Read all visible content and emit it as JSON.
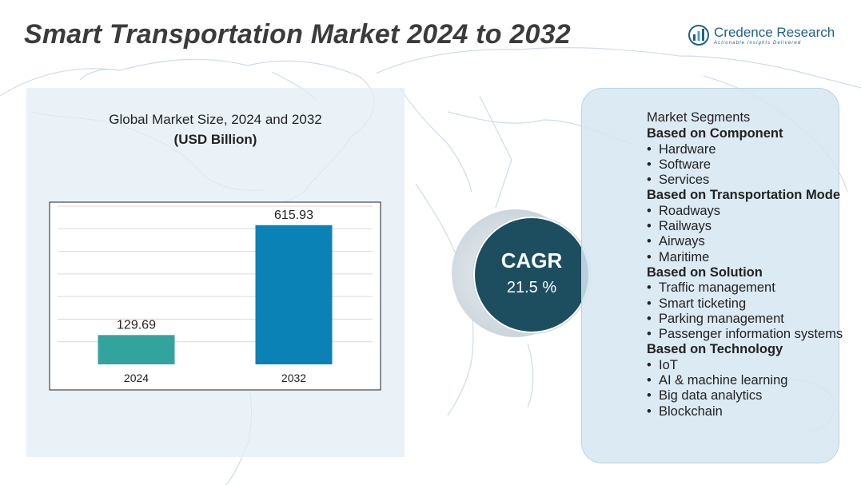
{
  "header": {
    "title": "Smart Transportation Market 2024 to 2032",
    "brand_name": "Credence Research",
    "brand_tagline": "Actionable Insights Delivered",
    "brand_icon": "bar-chart-globe-icon"
  },
  "chart_data": {
    "type": "bar",
    "title": "Global Market Size, 2024 and 2032",
    "subtitle": "(USD Billion)",
    "categories": [
      "2024",
      "2032"
    ],
    "values": [
      129.69,
      615.93
    ],
    "data_labels": [
      "129.69",
      "615.93"
    ],
    "colors": [
      "#33a39e",
      "#0b82b5"
    ],
    "ylim": [
      0,
      700
    ],
    "grid": true
  },
  "cagr": {
    "label": "CAGR",
    "value": "21.5 %"
  },
  "segments": {
    "title": "Market Segments",
    "groups": [
      {
        "title": "Based on Component",
        "items": [
          "Hardware",
          "Software",
          "Services"
        ]
      },
      {
        "title": "Based on Transportation Mode",
        "items": [
          "Roadways",
          "Railways",
          "Airways",
          "Maritime"
        ]
      },
      {
        "title": "Based on Solution",
        "items": [
          "Traffic management",
          "Smart ticketing",
          "Parking management",
          "Passenger information systems"
        ]
      },
      {
        "title": "Based on Technology",
        "items": [
          "IoT",
          "AI & machine learning",
          "Big data analytics",
          "Blockchain"
        ]
      }
    ]
  },
  "colors": {
    "title_text": "#3b3b3b",
    "brand": "#1f5f8b",
    "cagr_circle": "#1c4e5f",
    "panel": "#e2edf5"
  }
}
